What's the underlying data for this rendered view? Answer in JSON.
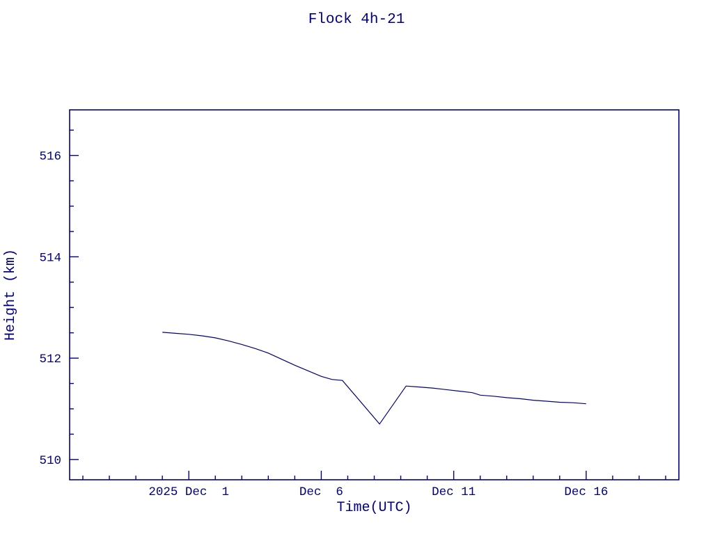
{
  "page": {
    "background_color": "#ffffff",
    "accent_color": "#000080"
  },
  "chart_data": {
    "type": "line",
    "title": "Flock 4h-21",
    "xlabel": "Time(UTC)",
    "ylabel": "Height (km)",
    "color": "#000080",
    "grid": false,
    "legend": "none",
    "x_encoding": "day of 2025 December (Nov 30 = 0)",
    "x_domain_days": [
      -3.5,
      19.5
    ],
    "y_domain": [
      509.6,
      516.9
    ],
    "x_major_ticks": [
      {
        "day": 1,
        "label": "2025 Dec  1"
      },
      {
        "day": 6,
        "label": "Dec  6"
      },
      {
        "day": 11,
        "label": "Dec 11"
      },
      {
        "day": 16,
        "label": "Dec 16"
      }
    ],
    "x_minor_tick_interval_days": 1,
    "y_major_ticks": [
      {
        "value": 510,
        "label": "510"
      },
      {
        "value": 512,
        "label": "512"
      },
      {
        "value": 514,
        "label": "514"
      },
      {
        "value": 516,
        "label": "516"
      }
    ],
    "y_minor_tick_interval": 0.5,
    "series": [
      {
        "name": "height",
        "points": [
          [
            0.0,
            512.51
          ],
          [
            0.5,
            512.49
          ],
          [
            1.0,
            512.47
          ],
          [
            1.5,
            512.44
          ],
          [
            2.0,
            512.4
          ],
          [
            2.5,
            512.34
          ],
          [
            3.0,
            512.27
          ],
          [
            3.5,
            512.19
          ],
          [
            4.0,
            512.1
          ],
          [
            4.5,
            511.98
          ],
          [
            5.0,
            511.86
          ],
          [
            5.5,
            511.75
          ],
          [
            6.0,
            511.64
          ],
          [
            6.4,
            511.58
          ],
          [
            6.8,
            511.56
          ],
          [
            8.2,
            510.7
          ],
          [
            9.2,
            511.45
          ],
          [
            9.7,
            511.43
          ],
          [
            10.2,
            511.41
          ],
          [
            10.7,
            511.38
          ],
          [
            11.2,
            511.35
          ],
          [
            11.7,
            511.32
          ],
          [
            12.0,
            511.27
          ],
          [
            12.5,
            511.25
          ],
          [
            13.0,
            511.22
          ],
          [
            13.5,
            511.2
          ],
          [
            14.0,
            511.17
          ],
          [
            14.5,
            511.15
          ],
          [
            15.0,
            511.13
          ],
          [
            15.5,
            511.12
          ],
          [
            16.0,
            511.1
          ]
        ]
      }
    ]
  }
}
